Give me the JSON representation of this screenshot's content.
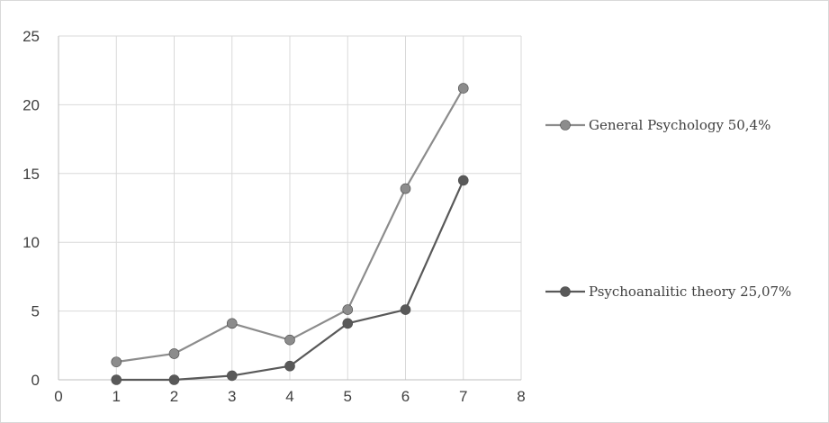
{
  "chart_data": {
    "type": "line",
    "title": "",
    "xlabel": "",
    "ylabel": "",
    "xlim": [
      0,
      8
    ],
    "ylim": [
      0,
      25
    ],
    "x_ticks": [
      "0",
      "1",
      "2",
      "3",
      "4",
      "5",
      "6",
      "7",
      "8"
    ],
    "y_ticks": [
      "0",
      "5",
      "10",
      "15",
      "20",
      "25"
    ],
    "grid": true,
    "legend_position": "right",
    "series": [
      {
        "name": "General Psychology 50,4%",
        "color": "#8c8c8c",
        "x": [
          1,
          2,
          3,
          4,
          5,
          6,
          7
        ],
        "y": [
          1.3,
          1.9,
          4.1,
          2.9,
          5.1,
          13.9,
          21.2
        ]
      },
      {
        "name": "Psychoanalitic theory 25,07%",
        "color": "#595959",
        "x": [
          1,
          2,
          3,
          4,
          5,
          6,
          7
        ],
        "y": [
          0,
          0,
          0.3,
          1.0,
          4.1,
          5.1,
          14.5
        ]
      }
    ]
  }
}
